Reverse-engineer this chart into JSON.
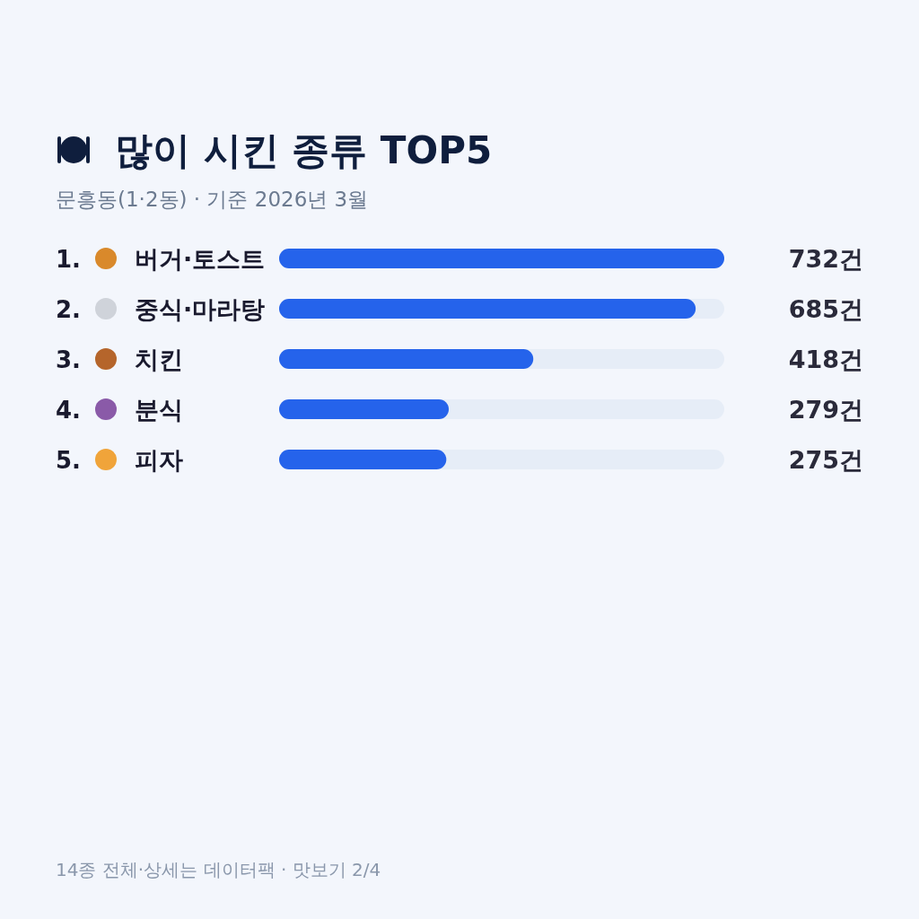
{
  "chart_data": {
    "type": "bar",
    "orientation": "horizontal",
    "title": "많이 시킨 종류 TOP5",
    "subtitle": "문흥동(1·2동) · 기준 2026년 3월",
    "categories": [
      "1. 버거·토스트",
      "2. 중식·마라탕",
      "3. 치킨",
      "4. 분식",
      "5. 피자"
    ],
    "values": [
      732,
      685,
      418,
      279,
      275
    ],
    "value_labels": [
      "732건",
      "685건",
      "418건",
      "279건",
      "275건"
    ],
    "color": "#2563eb",
    "xlim": [
      0,
      732
    ],
    "annotations": [
      "14종 전체·상세는 데이터팩 · 맛보기 2/4"
    ]
  }
}
